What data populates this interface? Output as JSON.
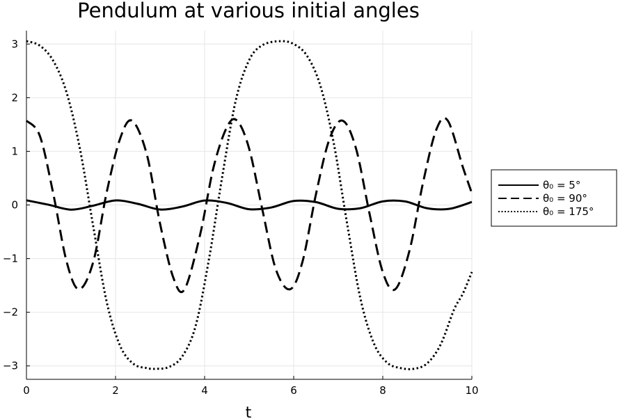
{
  "chart_data": {
    "type": "line",
    "title": "Pendulum at various initial angles",
    "xlabel": "t",
    "ylabel": "",
    "xlim": [
      0,
      10
    ],
    "ylim": [
      -3.25,
      3.25
    ],
    "xticks": [
      0,
      2,
      4,
      6,
      8,
      10
    ],
    "yticks": [
      -3,
      -2,
      -1,
      0,
      1,
      2,
      3
    ],
    "xtick_labels": [
      "0",
      "2",
      "4",
      "6",
      "8",
      "10"
    ],
    "ytick_labels": [
      "−3",
      "−2",
      "−1",
      "0",
      "1",
      "2",
      "3"
    ],
    "grid": true,
    "legend_position": "outside-right",
    "series": [
      {
        "name": "θ₀ = 5°",
        "style": "solid",
        "x": [
          0,
          0.5,
          1.0,
          1.5,
          2.0,
          2.5,
          3.0,
          3.5,
          4.0,
          4.5,
          5.0,
          5.5,
          6.0,
          6.5,
          7.0,
          7.5,
          8.0,
          8.5,
          9.0,
          9.5,
          10.0
        ],
        "y": [
          0.087,
          0.004,
          -0.087,
          -0.013,
          0.085,
          0.021,
          -0.084,
          -0.03,
          0.082,
          0.038,
          -0.079,
          -0.046,
          0.075,
          0.053,
          -0.071,
          -0.06,
          0.067,
          0.066,
          -0.062,
          -0.071,
          0.056
        ]
      },
      {
        "name": "θ₀ = 90°",
        "style": "dashed",
        "x": [
          0,
          0.3,
          0.6,
          0.9,
          1.18,
          1.5,
          1.8,
          2.1,
          2.37,
          2.7,
          3.0,
          3.3,
          3.55,
          3.9,
          4.2,
          4.5,
          4.73,
          5.0,
          5.3,
          5.6,
          5.92,
          6.2,
          6.5,
          6.8,
          7.1,
          7.4,
          7.7,
          8.0,
          8.28,
          8.6,
          8.9,
          9.2,
          9.46,
          9.8,
          10.0
        ],
        "y": [
          1.571,
          1.29,
          0.22,
          -1.05,
          -1.571,
          -1.06,
          0.23,
          1.23,
          1.571,
          0.95,
          -0.35,
          -1.36,
          -1.571,
          -0.55,
          0.7,
          1.45,
          1.571,
          1.05,
          -0.1,
          -1.2,
          -1.571,
          -1.05,
          0.2,
          1.22,
          1.571,
          1.05,
          -0.15,
          -1.25,
          -1.571,
          -0.85,
          0.4,
          1.4,
          1.571,
          0.7,
          0.22
        ]
      },
      {
        "name": "θ₀ = 175°",
        "style": "dotted",
        "x": [
          0,
          0.3,
          0.6,
          0.9,
          1.2,
          1.5,
          1.8,
          2.1,
          2.4,
          2.7,
          2.9,
          3.2,
          3.5,
          3.8,
          4.1,
          4.4,
          4.7,
          5.0,
          5.3,
          5.7,
          6.0,
          6.3,
          6.6,
          6.9,
          7.2,
          7.5,
          7.8,
          8.1,
          8.4,
          8.7,
          9.0,
          9.3,
          9.6,
          9.8,
          10.0
        ],
        "y": [
          3.054,
          2.97,
          2.69,
          2.1,
          1.05,
          -0.4,
          -1.8,
          -2.62,
          -2.96,
          -3.04,
          -3.054,
          -3.02,
          -2.82,
          -2.25,
          -1.0,
          0.55,
          1.95,
          2.7,
          2.98,
          3.054,
          3.0,
          2.78,
          2.22,
          1.15,
          -0.35,
          -1.75,
          -2.58,
          -2.94,
          -3.04,
          -3.054,
          -2.95,
          -2.6,
          -1.95,
          -1.65,
          -1.25
        ]
      }
    ]
  }
}
